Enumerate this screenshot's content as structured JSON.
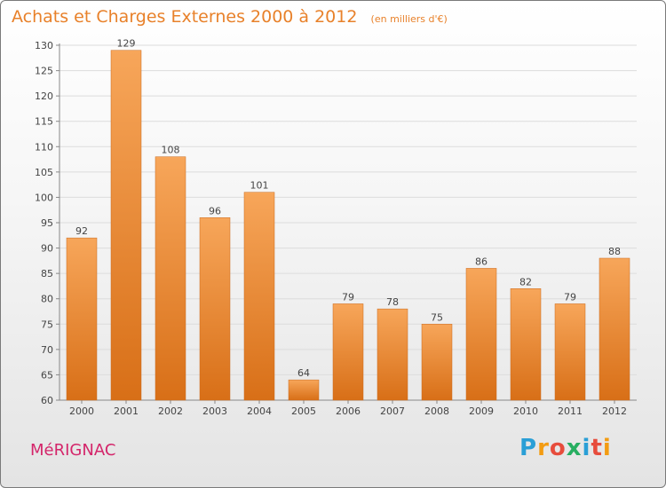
{
  "title": "Achats et Charges Externes 2000 à 2012",
  "unit_note": "(en milliers d'€)",
  "city": "MéRIGNAC",
  "brand": {
    "name": "Proxiti",
    "letters": [
      "P",
      "r",
      "o",
      "x",
      "i",
      "t",
      "i"
    ],
    "colors": [
      "#2a9fd6",
      "#f39c12",
      "#e74c3c",
      "#27ae60",
      "#2a9fd6",
      "#e74c3c",
      "#f39c12"
    ]
  },
  "colors": {
    "bar_top": "#f7a65a",
    "bar_bottom": "#d86f17",
    "title": "#e8812a",
    "city": "#d4256a"
  },
  "chart_data": {
    "type": "bar",
    "title": "Achats et Charges Externes 2000 à 2012",
    "subtitle": "(en milliers d'€)",
    "categories": [
      "2000",
      "2001",
      "2002",
      "2003",
      "2004",
      "2005",
      "2006",
      "2007",
      "2008",
      "2009",
      "2010",
      "2011",
      "2012"
    ],
    "values": [
      92,
      129,
      108,
      96,
      101,
      64,
      79,
      78,
      75,
      86,
      82,
      79,
      88
    ],
    "ylim": [
      60,
      130
    ],
    "yticks": [
      60,
      65,
      70,
      75,
      80,
      85,
      90,
      95,
      100,
      105,
      110,
      115,
      120,
      125,
      130
    ],
    "grid": true,
    "legend": "none",
    "xlabel": "",
    "ylabel": ""
  }
}
